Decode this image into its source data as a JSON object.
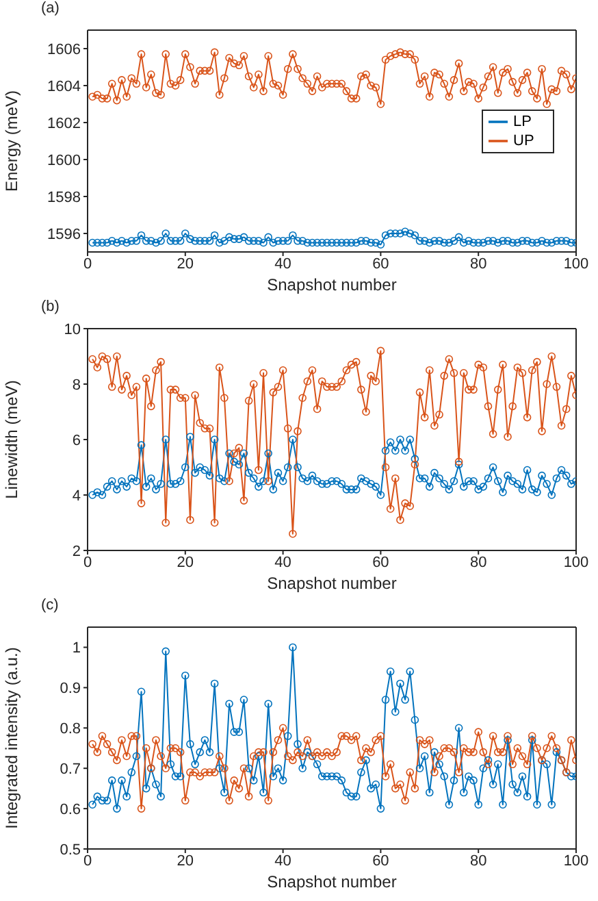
{
  "chart_data": [
    {
      "type": "line",
      "title": "(a)",
      "xlabel": "Snapshot number",
      "ylabel": "Energy (meV)",
      "xlim": [
        0,
        100
      ],
      "xticks": [
        0,
        20,
        40,
        60,
        80,
        100
      ],
      "ylim": [
        1595,
        1607
      ],
      "yticks": [
        1596,
        1598,
        1600,
        1602,
        1604,
        1606
      ],
      "marker": "circle",
      "legend": "right",
      "x": [
        1,
        2,
        3,
        4,
        5,
        6,
        7,
        8,
        9,
        10,
        11,
        12,
        13,
        14,
        15,
        16,
        17,
        18,
        19,
        20,
        21,
        22,
        23,
        24,
        25,
        26,
        27,
        28,
        29,
        30,
        31,
        32,
        33,
        34,
        35,
        36,
        37,
        38,
        39,
        40,
        41,
        42,
        43,
        44,
        45,
        46,
        47,
        48,
        49,
        50,
        51,
        52,
        53,
        54,
        55,
        56,
        57,
        58,
        59,
        60,
        61,
        62,
        63,
        64,
        65,
        66,
        67,
        68,
        69,
        70,
        71,
        72,
        73,
        74,
        75,
        76,
        77,
        78,
        79,
        80,
        81,
        82,
        83,
        84,
        85,
        86,
        87,
        88,
        89,
        90,
        91,
        92,
        93,
        94,
        95,
        96,
        97,
        98,
        99,
        100
      ],
      "series": [
        {
          "name": "LP",
          "color": "#0072bd",
          "values": [
            1595.5,
            1595.5,
            1595.5,
            1595.5,
            1595.6,
            1595.5,
            1595.6,
            1595.5,
            1595.6,
            1595.6,
            1595.9,
            1595.6,
            1595.6,
            1595.5,
            1595.6,
            1596.0,
            1595.6,
            1595.6,
            1595.6,
            1596.0,
            1595.7,
            1595.6,
            1595.6,
            1595.6,
            1595.6,
            1595.9,
            1595.5,
            1595.6,
            1595.8,
            1595.7,
            1595.7,
            1595.8,
            1595.6,
            1595.6,
            1595.6,
            1595.5,
            1595.8,
            1595.5,
            1595.6,
            1595.6,
            1595.6,
            1595.9,
            1595.6,
            1595.6,
            1595.5,
            1595.5,
            1595.5,
            1595.5,
            1595.5,
            1595.5,
            1595.5,
            1595.5,
            1595.5,
            1595.5,
            1595.5,
            1595.6,
            1595.6,
            1595.5,
            1595.5,
            1595.4,
            1595.9,
            1596.0,
            1596.0,
            1596.0,
            1596.1,
            1596.0,
            1595.9,
            1595.6,
            1595.6,
            1595.5,
            1595.6,
            1595.6,
            1595.5,
            1595.5,
            1595.6,
            1595.8,
            1595.5,
            1595.6,
            1595.5,
            1595.5,
            1595.5,
            1595.6,
            1595.6,
            1595.5,
            1595.6,
            1595.6,
            1595.5,
            1595.5,
            1595.6,
            1595.6,
            1595.5,
            1595.5,
            1595.6,
            1595.5,
            1595.5,
            1595.6,
            1595.6,
            1595.6,
            1595.5,
            1595.5
          ]
        },
        {
          "name": "UP",
          "color": "#d95319",
          "values": [
            1603.4,
            1603.5,
            1603.3,
            1603.3,
            1604.1,
            1603.2,
            1604.3,
            1603.4,
            1604.4,
            1604.1,
            1605.7,
            1603.9,
            1604.6,
            1603.6,
            1603.5,
            1605.7,
            1604.1,
            1604.0,
            1604.3,
            1605.7,
            1605.0,
            1604.1,
            1604.8,
            1604.8,
            1604.8,
            1605.8,
            1603.5,
            1604.4,
            1605.5,
            1605.2,
            1605.1,
            1605.6,
            1604.5,
            1603.9,
            1604.6,
            1603.7,
            1605.6,
            1604.1,
            1604.0,
            1603.5,
            1604.9,
            1605.7,
            1604.9,
            1604.4,
            1604.1,
            1603.7,
            1604.5,
            1603.9,
            1604.1,
            1604.1,
            1604.1,
            1604.1,
            1603.7,
            1603.3,
            1603.3,
            1604.5,
            1604.6,
            1604.0,
            1603.9,
            1603.0,
            1605.4,
            1605.6,
            1605.7,
            1605.8,
            1605.7,
            1605.7,
            1605.4,
            1604.1,
            1604.5,
            1603.4,
            1604.7,
            1604.6,
            1604.1,
            1603.4,
            1604.3,
            1605.2,
            1603.7,
            1604.2,
            1604.1,
            1603.3,
            1603.9,
            1604.5,
            1605.0,
            1603.6,
            1604.7,
            1604.9,
            1604.2,
            1603.6,
            1604.3,
            1604.7,
            1603.7,
            1603.3,
            1604.9,
            1603.0,
            1603.8,
            1603.7,
            1604.8,
            1604.6,
            1603.8,
            1604.4
          ]
        }
      ]
    },
    {
      "type": "line",
      "title": "(b)",
      "xlabel": "Snapshot number",
      "ylabel": "Linewidth (meV)",
      "xlim": [
        0,
        100
      ],
      "xticks": [
        0,
        20,
        40,
        60,
        80,
        100
      ],
      "ylim": [
        2,
        10
      ],
      "yticks": [
        2,
        4,
        6,
        8,
        10
      ],
      "marker": "circle",
      "x": [
        1,
        2,
        3,
        4,
        5,
        6,
        7,
        8,
        9,
        10,
        11,
        12,
        13,
        14,
        15,
        16,
        17,
        18,
        19,
        20,
        21,
        22,
        23,
        24,
        25,
        26,
        27,
        28,
        29,
        30,
        31,
        32,
        33,
        34,
        35,
        36,
        37,
        38,
        39,
        40,
        41,
        42,
        43,
        44,
        45,
        46,
        47,
        48,
        49,
        50,
        51,
        52,
        53,
        54,
        55,
        56,
        57,
        58,
        59,
        60,
        61,
        62,
        63,
        64,
        65,
        66,
        67,
        68,
        69,
        70,
        71,
        72,
        73,
        74,
        75,
        76,
        77,
        78,
        79,
        80,
        81,
        82,
        83,
        84,
        85,
        86,
        87,
        88,
        89,
        90,
        91,
        92,
        93,
        94,
        95,
        96,
        97,
        98,
        99,
        100
      ],
      "series": [
        {
          "color": "#0072bd",
          "values": [
            4.0,
            4.1,
            4.0,
            4.3,
            4.5,
            4.2,
            4.5,
            4.3,
            4.6,
            4.5,
            5.8,
            4.3,
            4.6,
            4.2,
            4.4,
            6.0,
            4.4,
            4.4,
            4.5,
            5.0,
            6.1,
            4.8,
            5.0,
            4.9,
            4.7,
            6.0,
            4.6,
            4.5,
            5.5,
            5.2,
            5.1,
            5.5,
            4.8,
            4.6,
            4.3,
            4.5,
            5.5,
            4.2,
            4.8,
            4.5,
            5.0,
            6.0,
            5.0,
            4.6,
            4.5,
            4.7,
            4.5,
            4.4,
            4.4,
            4.5,
            4.5,
            4.4,
            4.2,
            4.2,
            4.2,
            4.6,
            4.5,
            4.4,
            4.3,
            4.0,
            5.6,
            5.9,
            5.6,
            6.0,
            5.6,
            6.0,
            5.3,
            4.6,
            4.6,
            4.3,
            4.8,
            4.6,
            4.4,
            4.2,
            4.5,
            5.1,
            4.3,
            4.5,
            4.5,
            4.2,
            4.3,
            4.6,
            5.0,
            4.5,
            4.1,
            4.7,
            4.5,
            4.4,
            4.2,
            4.9,
            4.2,
            4.1,
            4.7,
            4.4,
            4.0,
            4.6,
            4.9,
            4.7,
            4.4,
            4.5
          ]
        },
        {
          "color": "#d95319",
          "values": [
            8.9,
            8.6,
            9.0,
            8.9,
            7.9,
            9.0,
            7.8,
            8.3,
            7.6,
            7.9,
            3.7,
            8.2,
            7.2,
            8.5,
            8.8,
            3.0,
            7.8,
            7.8,
            7.5,
            7.5,
            3.1,
            7.6,
            6.6,
            6.4,
            6.4,
            3.0,
            8.6,
            7.5,
            4.5,
            5.5,
            5.7,
            3.8,
            7.4,
            8.0,
            4.9,
            8.4,
            4.5,
            7.7,
            7.9,
            8.5,
            6.4,
            2.6,
            6.3,
            7.5,
            8.1,
            8.5,
            7.1,
            8.1,
            7.9,
            7.9,
            7.9,
            8.1,
            8.5,
            8.7,
            8.8,
            7.8,
            7.0,
            8.3,
            8.1,
            9.2,
            5.0,
            3.5,
            4.6,
            3.1,
            3.7,
            3.6,
            5.1,
            7.7,
            6.8,
            8.5,
            6.5,
            6.9,
            8.3,
            8.9,
            8.4,
            5.2,
            8.4,
            7.8,
            7.8,
            8.7,
            8.6,
            7.2,
            6.2,
            7.8,
            8.7,
            6.1,
            7.2,
            8.6,
            8.4,
            6.8,
            8.5,
            8.8,
            6.3,
            8.0,
            9.0,
            7.9,
            6.5,
            7.1,
            8.3,
            7.6
          ]
        }
      ]
    },
    {
      "type": "line",
      "title": "(c)",
      "xlabel": "Snapshot number",
      "ylabel": "Integrated intensity (a.u.)",
      "xlim": [
        0,
        100
      ],
      "xticks": [
        0,
        20,
        40,
        60,
        80,
        100
      ],
      "ylim": [
        0.5,
        1.05
      ],
      "yticks": [
        0.5,
        0.6,
        0.7,
        0.8,
        0.9,
        1
      ],
      "marker": "circle",
      "x": [
        1,
        2,
        3,
        4,
        5,
        6,
        7,
        8,
        9,
        10,
        11,
        12,
        13,
        14,
        15,
        16,
        17,
        18,
        19,
        20,
        21,
        22,
        23,
        24,
        25,
        26,
        27,
        28,
        29,
        30,
        31,
        32,
        33,
        34,
        35,
        36,
        37,
        38,
        39,
        40,
        41,
        42,
        43,
        44,
        45,
        46,
        47,
        48,
        49,
        50,
        51,
        52,
        53,
        54,
        55,
        56,
        57,
        58,
        59,
        60,
        61,
        62,
        63,
        64,
        65,
        66,
        67,
        68,
        69,
        70,
        71,
        72,
        73,
        74,
        75,
        76,
        77,
        78,
        79,
        80,
        81,
        82,
        83,
        84,
        85,
        86,
        87,
        88,
        89,
        90,
        91,
        92,
        93,
        94,
        95,
        96,
        97,
        98,
        99,
        100
      ],
      "series": [
        {
          "color": "#0072bd",
          "values": [
            0.61,
            0.63,
            0.62,
            0.62,
            0.67,
            0.6,
            0.67,
            0.63,
            0.69,
            0.73,
            0.89,
            0.65,
            0.7,
            0.66,
            0.63,
            0.99,
            0.71,
            0.68,
            0.68,
            0.93,
            0.76,
            0.71,
            0.74,
            0.77,
            0.74,
            0.91,
            0.7,
            0.64,
            0.86,
            0.79,
            0.79,
            0.87,
            0.7,
            0.67,
            0.73,
            0.64,
            0.86,
            0.68,
            0.7,
            0.67,
            0.78,
            1.0,
            0.76,
            0.7,
            0.74,
            0.73,
            0.71,
            0.68,
            0.68,
            0.68,
            0.68,
            0.67,
            0.64,
            0.63,
            0.63,
            0.69,
            0.72,
            0.65,
            0.66,
            0.6,
            0.87,
            0.94,
            0.84,
            0.91,
            0.87,
            0.94,
            0.82,
            0.7,
            0.73,
            0.64,
            0.74,
            0.71,
            0.68,
            0.61,
            0.67,
            0.8,
            0.64,
            0.68,
            0.67,
            0.61,
            0.7,
            0.72,
            0.66,
            0.71,
            0.61,
            0.77,
            0.66,
            0.64,
            0.68,
            0.63,
            0.77,
            0.61,
            0.72,
            0.71,
            0.61,
            0.74,
            0.72,
            0.69,
            0.68,
            0.68
          ]
        },
        {
          "color": "#d95319",
          "values": [
            0.76,
            0.74,
            0.78,
            0.76,
            0.74,
            0.72,
            0.77,
            0.73,
            0.78,
            0.78,
            0.6,
            0.75,
            0.7,
            0.77,
            0.73,
            0.7,
            0.75,
            0.75,
            0.74,
            0.62,
            0.69,
            0.69,
            0.68,
            0.69,
            0.69,
            0.69,
            0.73,
            0.7,
            0.62,
            0.67,
            0.65,
            0.7,
            0.63,
            0.73,
            0.74,
            0.74,
            0.62,
            0.74,
            0.77,
            0.8,
            0.73,
            0.72,
            0.74,
            0.73,
            0.77,
            0.73,
            0.74,
            0.73,
            0.74,
            0.73,
            0.74,
            0.78,
            0.78,
            0.77,
            0.78,
            0.72,
            0.75,
            0.74,
            0.77,
            0.78,
            0.68,
            0.71,
            0.65,
            0.66,
            0.62,
            0.69,
            0.65,
            0.77,
            0.76,
            0.77,
            0.69,
            0.73,
            0.75,
            0.75,
            0.74,
            0.69,
            0.75,
            0.74,
            0.74,
            0.79,
            0.74,
            0.71,
            0.78,
            0.74,
            0.74,
            0.78,
            0.71,
            0.75,
            0.73,
            0.71,
            0.78,
            0.75,
            0.72,
            0.75,
            0.78,
            0.75,
            0.72,
            0.69,
            0.77,
            0.72
          ]
        }
      ]
    }
  ]
}
